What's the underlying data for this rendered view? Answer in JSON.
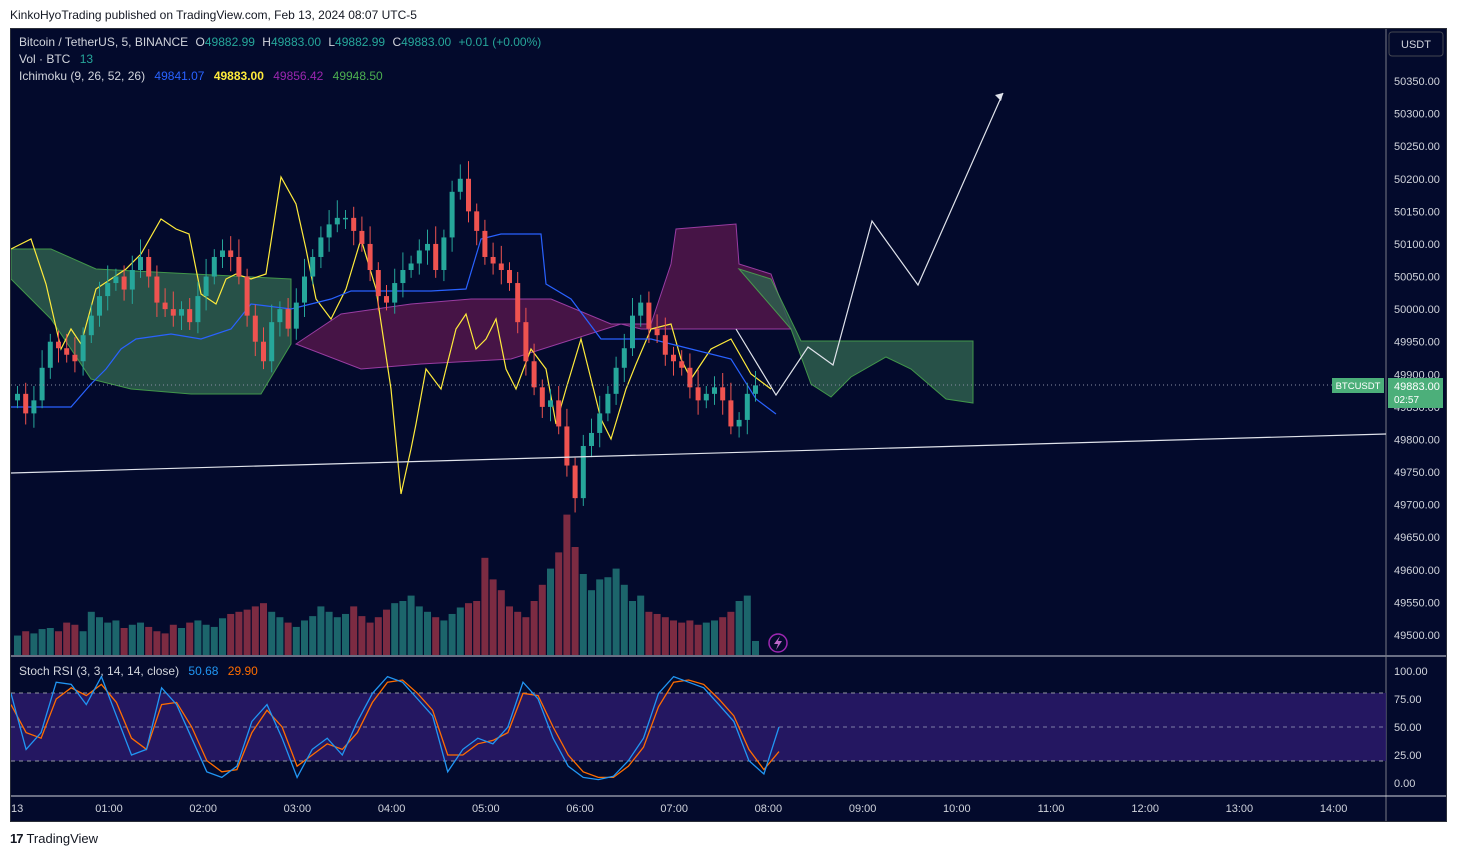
{
  "header": {
    "published": "KinkoHyoTrading published on TradingView.com, Feb 13, 2024 08:07 UTC-5"
  },
  "footer": {
    "brand": "TradingView"
  },
  "legend": {
    "symbol": "Bitcoin / TetherUS, 5, BINANCE",
    "o_label": "O",
    "o_value": "49882.99",
    "h_label": "H",
    "h_value": "49883.00",
    "l_label": "L",
    "l_value": "49882.99",
    "c_label": "C",
    "c_value": "49883.00",
    "change": "+0.01 (+0.00%)",
    "vol_label": "Vol · BTC",
    "vol_value": "13",
    "ichimoku_label": "Ichimoku (9, 26, 52, 26)",
    "ichimoku_values": [
      "49841.07",
      "49883.00",
      "49856.42",
      "49948.50"
    ],
    "stoch_label": "Stoch RSI (3, 3, 14, 14, close)",
    "stoch_k": "50.68",
    "stoch_d": "29.90"
  },
  "price_axis": {
    "currency": "USDT",
    "ticks": [
      "50350.00",
      "50300.00",
      "50250.00",
      "50200.00",
      "50150.00",
      "50100.00",
      "50050.00",
      "50000.00",
      "49950.00",
      "49900.00",
      "49850.00",
      "49800.00",
      "49750.00",
      "49700.00",
      "49650.00",
      "49600.00",
      "49550.00",
      "49500.00"
    ],
    "last_symbol": "BTCUSDT",
    "last_price": "49883.00",
    "countdown": "02:57"
  },
  "stoch_axis": {
    "ticks": [
      "100.00",
      "75.00",
      "50.00",
      "25.00",
      "0.00"
    ]
  },
  "time_axis": {
    "ticks": [
      "13",
      "01:00",
      "02:00",
      "03:00",
      "04:00",
      "05:00",
      "06:00",
      "07:00",
      "08:00",
      "09:00",
      "10:00",
      "11:00",
      "12:00",
      "13:00",
      "14:00"
    ]
  },
  "colors": {
    "background": "#030a2c",
    "up": "#26a69a",
    "down": "#ef5350",
    "tenkan": "#2962ff",
    "kijun": "#ffeb3b",
    "lagging": "#9c27b0",
    "span_a": "#4caf50",
    "span_b": "#a23fa8",
    "rsi_k": "#2196f3",
    "rsi_d": "#ff6d00"
  },
  "chart_data": {
    "type": "candlestick",
    "interval": "5m",
    "price_range": [
      49470,
      50390
    ],
    "closes": [
      49870,
      49840,
      49860,
      49910,
      49950,
      49940,
      49930,
      49920,
      49960,
      49990,
      50020,
      50040,
      50050,
      50030,
      50060,
      50080,
      50050,
      50010,
      50000,
      49990,
      50000,
      49980,
      50020,
      50050,
      50080,
      50090,
      50080,
      50050,
      49990,
      49950,
      49920,
      49980,
      50000,
      49970,
      50010,
      50050,
      50080,
      50110,
      50130,
      50140,
      50140,
      50120,
      50100,
      50060,
      50020,
      50010,
      50040,
      50060,
      50070,
      50090,
      50100,
      50060,
      50110,
      50180,
      50200,
      50150,
      50120,
      50080,
      50070,
      50060,
      50040,
      49980,
      49920,
      49880,
      49850,
      49860,
      49820,
      49760,
      49710,
      49790,
      49810,
      49840,
      49870,
      49910,
      49940,
      49990,
      50010,
      49970,
      49960,
      49930,
      49920,
      49910,
      49880,
      49860,
      49870,
      49880,
      49860,
      49820,
      49830,
      49870,
      49883
    ],
    "volumes": [
      18,
      22,
      20,
      24,
      25,
      22,
      30,
      28,
      22,
      40,
      35,
      30,
      32,
      25,
      28,
      30,
      26,
      22,
      20,
      28,
      25,
      30,
      32,
      28,
      26,
      34,
      38,
      40,
      42,
      45,
      48,
      40,
      35,
      30,
      26,
      32,
      36,
      45,
      40,
      35,
      38,
      45,
      36,
      30,
      35,
      42,
      48,
      50,
      55,
      45,
      40,
      35,
      32,
      38,
      44,
      48,
      50,
      90,
      70,
      60,
      45,
      40,
      35,
      50,
      65,
      80,
      95,
      130,
      100,
      75,
      60,
      70,
      72,
      80,
      65,
      50,
      55,
      40,
      38,
      35,
      32,
      30,
      32,
      28,
      30,
      32,
      35,
      40,
      50,
      55,
      13
    ],
    "annotations": {
      "trendline": [
        [
          0,
          49749
        ],
        [
          1385,
          49809
        ]
      ],
      "projection": "zigzag path projecting up towards 50330"
    }
  }
}
